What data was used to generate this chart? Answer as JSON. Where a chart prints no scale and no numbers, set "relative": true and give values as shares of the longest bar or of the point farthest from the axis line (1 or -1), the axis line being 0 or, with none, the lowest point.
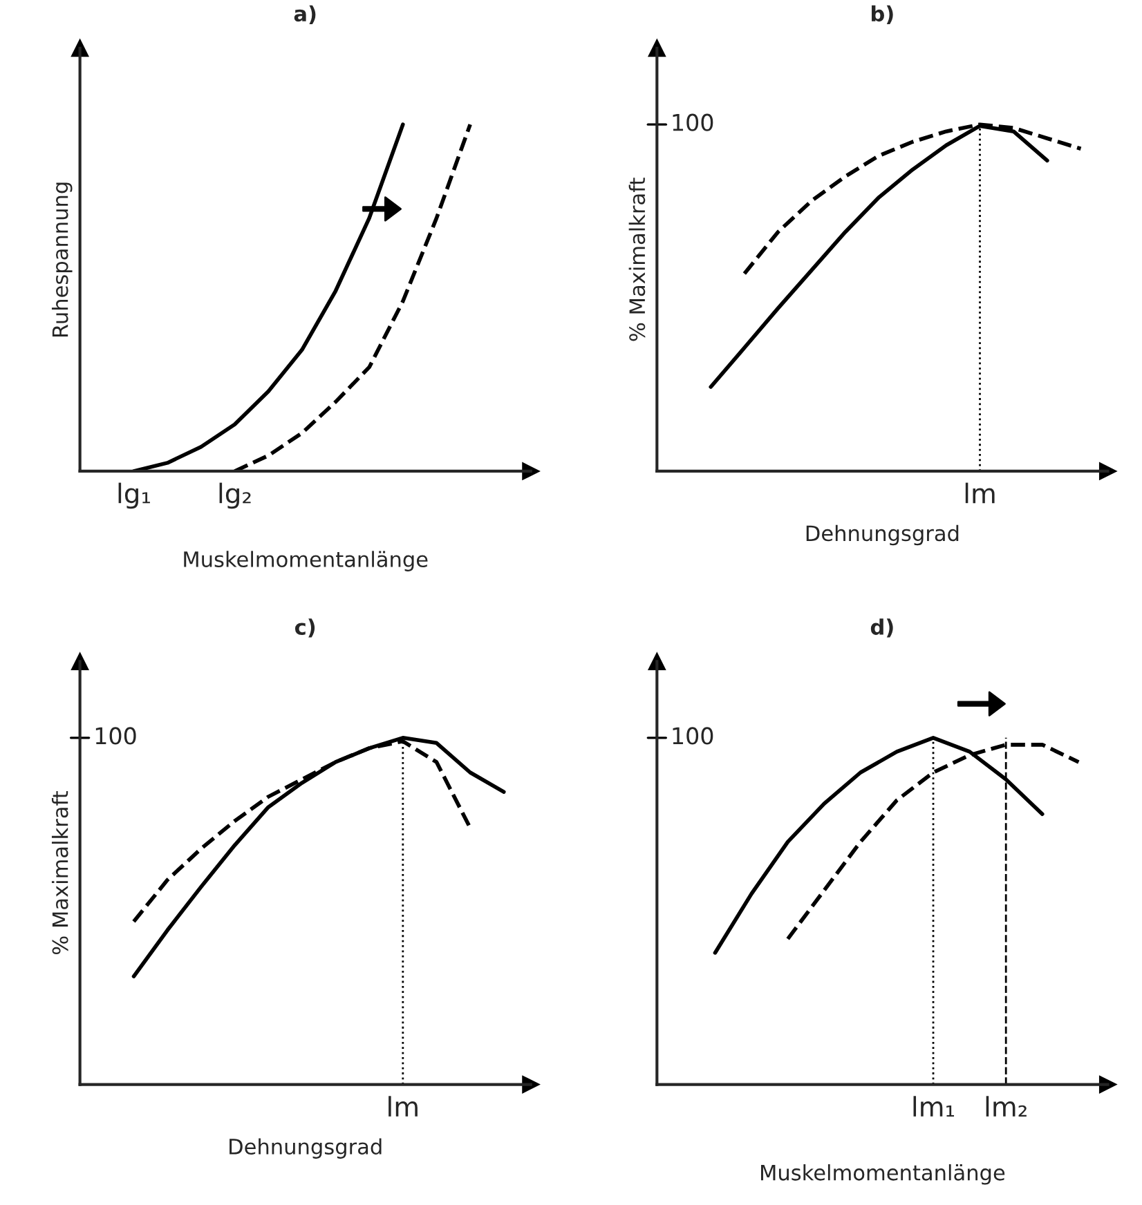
{
  "chart_data": [
    {
      "type": "line",
      "title": "a)",
      "xlabel": "Muskelmomentanlänge",
      "ylabel": "Ruhespannung",
      "relative": true,
      "grid": false,
      "legend": false,
      "marker": "none",
      "categories": [
        null,
        "lg₁",
        null,
        null,
        "lg₂",
        null,
        null,
        null,
        null,
        null,
        null,
        null,
        null
      ],
      "series": [
        {
          "color": "#000000",
          "line_style": "solid",
          "values": [
            null,
            0,
            0.024,
            0.07,
            0.135,
            0.23,
            0.35,
            0.52,
            0.73,
            1,
            null,
            null,
            null
          ]
        },
        {
          "color": "#000000",
          "line_style": "dashed",
          "values": [
            null,
            null,
            null,
            null,
            0,
            0.045,
            0.11,
            0.2,
            0.3,
            0.49,
            0.73,
            1,
            null
          ]
        }
      ]
    },
    {
      "type": "line",
      "title": "b)",
      "xlabel": "Dehnungsgrad",
      "ylabel": "% Maximalkraft",
      "relative": true,
      "grid": false,
      "legend": false,
      "marker": "none",
      "categories": [
        null,
        null,
        null,
        null,
        null,
        null,
        null,
        null,
        null,
        null,
        null,
        null,
        null
      ],
      "ref_lines": [
        {
          "axis": "y",
          "value": 1,
          "label": "100"
        }
      ],
      "annotations": [
        "lm"
      ],
      "series": [
        {
          "color": "#000000",
          "line_style": "solid",
          "values": [
            null,
            0.243,
            0.356,
            0.47,
            0.58,
            0.69,
            0.79,
            0.87,
            0.94,
            0.996,
            0.98,
            0.896,
            null
          ]
        },
        {
          "color": "#000000",
          "line_style": "dashed",
          "values": [
            null,
            null,
            0.57,
            0.69,
            0.78,
            0.85,
            0.91,
            0.95,
            0.98,
            1,
            0.99,
            0.96,
            0.93
          ]
        }
      ]
    },
    {
      "type": "line",
      "title": "c)",
      "xlabel": "Dehnungsgrad",
      "ylabel": "% Maximalkraft",
      "relative": true,
      "grid": false,
      "legend": false,
      "marker": "none",
      "categories": [
        null,
        null,
        null,
        null,
        null,
        null,
        null,
        null,
        null,
        null,
        null,
        null,
        null
      ],
      "ref_lines": [
        {
          "axis": "y",
          "value": 1,
          "label": "100"
        }
      ],
      "annotations": [
        "lm"
      ],
      "series": [
        {
          "color": "#000000",
          "line_style": "solid",
          "values": [
            null,
            0.312,
            0.445,
            0.57,
            0.69,
            0.8,
            0.87,
            0.93,
            0.97,
            1,
            0.985,
            0.9,
            0.844
          ]
        },
        {
          "color": "#000000",
          "line_style": "dashed",
          "values": [
            null,
            0.47,
            0.59,
            0.68,
            0.76,
            0.83,
            0.88,
            0.93,
            0.97,
            0.99,
            0.93,
            0.74,
            null
          ]
        }
      ]
    },
    {
      "type": "line",
      "title": "d)",
      "xlabel": "Muskelmomentanlänge",
      "relative": true,
      "grid": false,
      "legend": false,
      "marker": "none",
      "categories": [
        null,
        null,
        null,
        null,
        null,
        null,
        null,
        "lm₁",
        null,
        "lm₂",
        null,
        null
      ],
      "ref_lines": [
        {
          "axis": "y",
          "value": 1,
          "label": "100"
        },
        {
          "axis": "x",
          "value": "lm₁",
          "line_style": "dotted"
        },
        {
          "axis": "x",
          "value": "lm₂",
          "line_style": "dashed"
        }
      ],
      "series": [
        {
          "color": "#000000",
          "line_style": "solid",
          "values": [
            null,
            0.38,
            0.55,
            0.7,
            0.81,
            0.9,
            0.96,
            1,
            0.96,
            0.88,
            0.78,
            null
          ]
        },
        {
          "color": "#000000",
          "line_style": "dashed",
          "values": [
            null,
            null,
            null,
            0.42,
            0.56,
            0.7,
            0.82,
            0.9,
            0.95,
            0.98,
            0.98,
            0.93
          ]
        }
      ]
    }
  ]
}
